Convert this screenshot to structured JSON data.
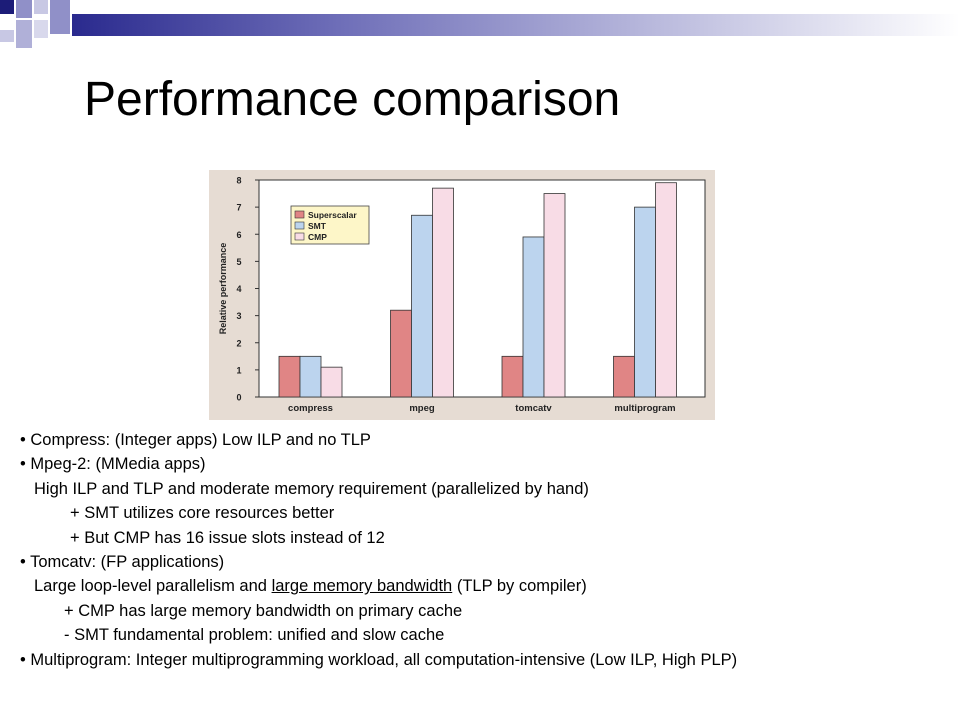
{
  "slide": {
    "title": "Performance comparison"
  },
  "bullets": [
    {
      "text": "• Compress: (Integer apps) Low ILP and no TLP",
      "indent": 0
    },
    {
      "text": "• Mpeg-2: (MMedia apps)",
      "indent": 0
    },
    {
      "text": "High ILP and TLP and moderate memory requirement (parallelized by hand)",
      "indent": 1
    },
    {
      "text": "+ SMT utilizes core resources better",
      "indent": 2
    },
    {
      "text": "+ But CMP has 16 issue slots instead of 12",
      "indent": 2
    },
    {
      "text": "• Tomcatv: (FP applications)",
      "indent": 0
    },
    {
      "text_parts": [
        "Large loop-level parallelism and ",
        "large memory bandwidth",
        " (TLP by compiler)"
      ],
      "indent": 1
    },
    {
      "text": "+ CMP has large memory bandwidth on primary cache",
      "indent": 3
    },
    {
      "text": "- SMT fundamental problem: unified and slow cache",
      "indent": 3
    },
    {
      "text": "• Multiprogram: Integer multiprogramming workload, all computation-intensive (Low ILP, High PLP)",
      "indent": 0
    }
  ],
  "chart_data": {
    "type": "bar",
    "title": "",
    "xlabel": "",
    "ylabel": "Relative performance",
    "ylim": [
      0,
      8
    ],
    "yticks": [
      "0",
      "1",
      "2",
      "3",
      "4",
      "5",
      "6",
      "7",
      "8"
    ],
    "categories": [
      "compress",
      "mpeg",
      "tomcatv",
      "multiprogram"
    ],
    "series": [
      {
        "name": "Superscalar",
        "color": "#e08585",
        "values": [
          1.5,
          3.2,
          1.5,
          1.5
        ]
      },
      {
        "name": "SMT",
        "color": "#bcd4ee",
        "values": [
          1.5,
          6.7,
          5.9,
          7.0
        ]
      },
      {
        "name": "CMP",
        "color": "#f8dce6",
        "values": [
          1.1,
          7.7,
          7.5,
          7.9
        ]
      }
    ],
    "legend_position": "top-left",
    "legend_bg": "#fdf6c8",
    "background": "#e6dcd3",
    "grid": false
  }
}
